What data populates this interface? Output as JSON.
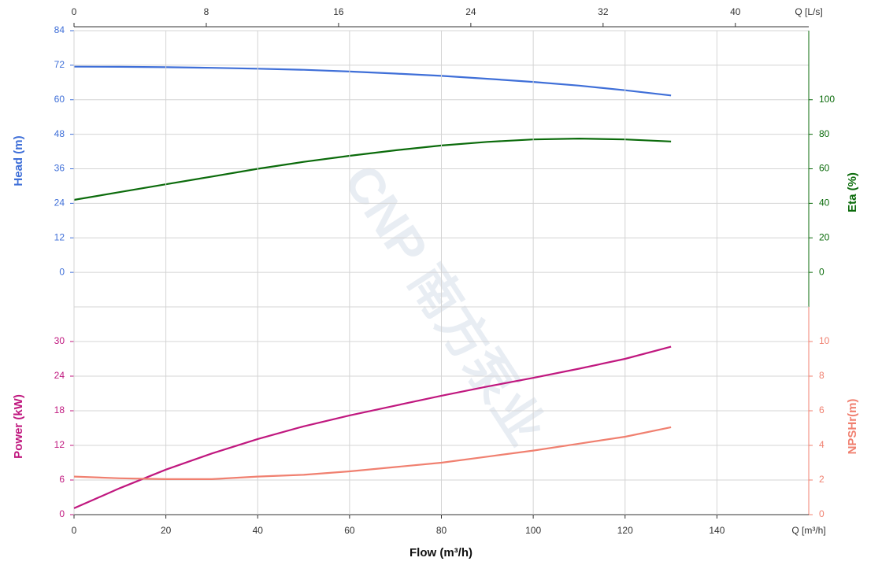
{
  "watermark": "CNP 南方泵业",
  "chart_data": [
    {
      "type": "line",
      "x": [
        0,
        10,
        20,
        30,
        40,
        50,
        60,
        70,
        80,
        90,
        100,
        110,
        120,
        130
      ],
      "xlim": [
        0,
        160
      ],
      "x2lim": [
        0,
        44.44
      ],
      "x2ticks": [
        0,
        8,
        16,
        24,
        32,
        40
      ],
      "x2unit": "Q [L/s]",
      "ylabel": "Head (m)",
      "ylim": [
        -12,
        84
      ],
      "yticks": [
        0,
        12,
        24,
        36,
        48,
        60,
        72,
        84
      ],
      "y2label": "Eta (%)",
      "y2lim": [
        -20,
        140
      ],
      "y2ticks": [
        0,
        20,
        40,
        60,
        80,
        100
      ],
      "grid": true,
      "series": [
        {
          "name": "Head",
          "color": "#3f6fd8",
          "axis": "y",
          "values": [
            71.5,
            71.45,
            71.3,
            71.1,
            70.8,
            70.4,
            69.8,
            69.1,
            68.3,
            67.3,
            66.2,
            64.9,
            63.3,
            61.5
          ]
        },
        {
          "name": "Eta",
          "color": "#0b6b0b",
          "axis": "y2",
          "values": [
            42,
            46.5,
            51,
            55.5,
            60,
            64,
            67.5,
            70.7,
            73.5,
            75.6,
            77,
            77.5,
            77,
            75.8
          ]
        }
      ]
    },
    {
      "type": "line",
      "x": [
        0,
        10,
        20,
        30,
        40,
        50,
        60,
        70,
        80,
        90,
        100,
        110,
        120,
        130
      ],
      "xlim": [
        0,
        160
      ],
      "xticks": [
        0,
        20,
        40,
        60,
        80,
        100,
        120,
        140
      ],
      "xunit": "Q [m³/h]",
      "xlabel": "Flow (m³/h)",
      "ylabel": "Power (kW)",
      "ylim": [
        0,
        36
      ],
      "yticks": [
        0,
        6,
        12,
        18,
        24,
        30
      ],
      "y2label": "NPSHr(m)",
      "y2lim": [
        0,
        12
      ],
      "y2ticks": [
        0,
        2,
        4,
        6,
        8,
        10
      ],
      "grid": true,
      "series": [
        {
          "name": "Power",
          "color": "#c0187f",
          "axis": "y",
          "values": [
            1.1,
            4.6,
            7.8,
            10.6,
            13.1,
            15.3,
            17.2,
            18.9,
            20.6,
            22.2,
            23.7,
            25.3,
            27,
            29.1
          ]
        },
        {
          "name": "NPSHr",
          "color": "#f08070",
          "axis": "y2",
          "values": [
            2.2,
            2.1,
            2.05,
            2.05,
            2.2,
            2.3,
            2.5,
            2.75,
            3.0,
            3.35,
            3.7,
            4.1,
            4.5,
            5.05
          ]
        }
      ]
    }
  ]
}
